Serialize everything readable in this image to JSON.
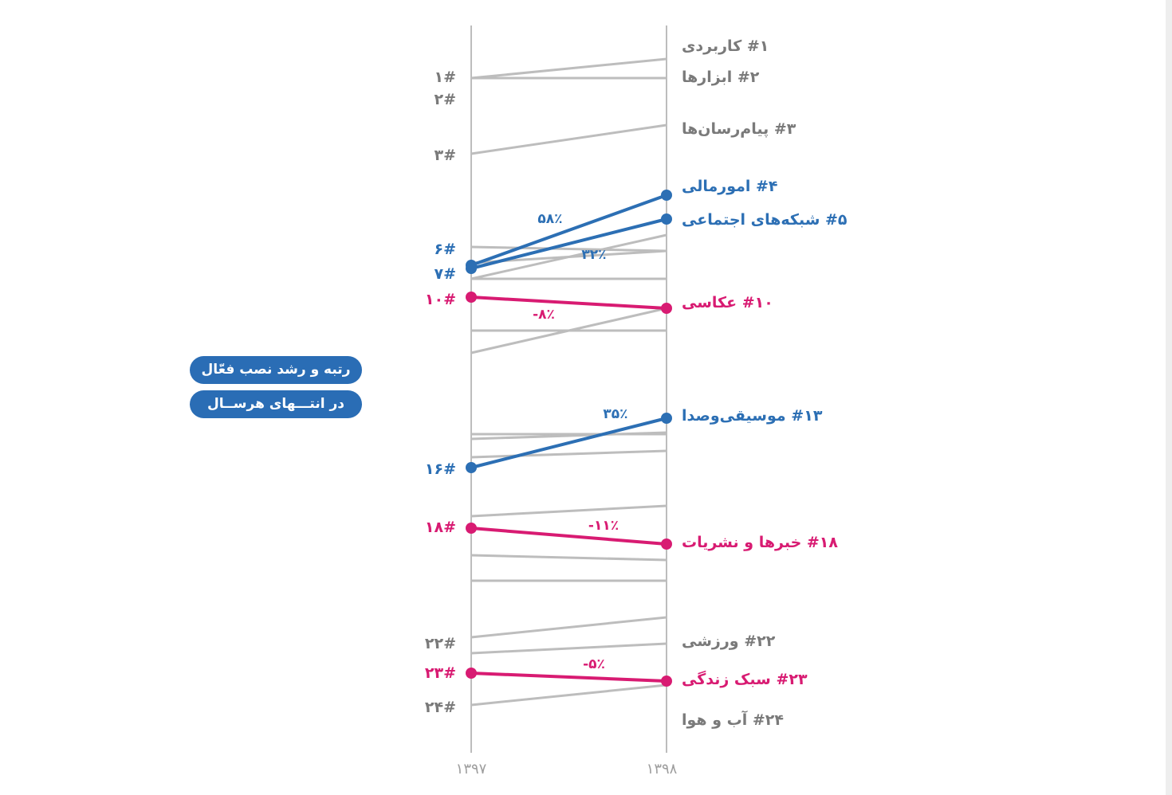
{
  "colors": {
    "gray": "#7a7a7a",
    "blue": "#2c6fb4",
    "pink": "#d81b72",
    "line": "#bdbdbd"
  },
  "years": [
    "۱۳۹۷",
    "۱۳۹۸"
  ],
  "title_lines": [
    "رتبه و رشد نصب فعّال",
    "در انتـــهای هرســال"
  ],
  "left_labels": [
    {
      "text": "۱#",
      "color": "gray"
    },
    {
      "text": "۲#",
      "color": "gray"
    },
    {
      "text": "۳#",
      "color": "gray"
    },
    {
      "text": "۶#",
      "color": "blue"
    },
    {
      "text": "۷#",
      "color": "blue"
    },
    {
      "text": "۱۰#",
      "color": "pink"
    },
    {
      "text": "۱۶#",
      "color": "blue"
    },
    {
      "text": "۱۸#",
      "color": "pink"
    },
    {
      "text": "۲۲#",
      "color": "gray"
    },
    {
      "text": "۲۳#",
      "color": "pink"
    },
    {
      "text": "۲۴#",
      "color": "gray"
    }
  ],
  "right_labels": [
    {
      "text": "#۱ کاربردی",
      "color": "gray"
    },
    {
      "text": "#۲ ابزارها",
      "color": "gray"
    },
    {
      "text": "#۳ پیام‌رسان‌ها",
      "color": "gray"
    },
    {
      "text": "#۴ امورمالی",
      "color": "blue"
    },
    {
      "text": "#۵ شبکه‌های اجتماعی",
      "color": "blue"
    },
    {
      "text": "#۱۰ عکاسی",
      "color": "pink"
    },
    {
      "text": "#۱۳ موسیقی‌وصدا",
      "color": "blue"
    },
    {
      "text": "#۱۸ خبرها و نشریات",
      "color": "pink"
    },
    {
      "text": "#۲۲ ورزشی",
      "color": "gray"
    },
    {
      "text": "#۲۳ سبک زندگی",
      "color": "pink"
    },
    {
      "text": "#۲۴ آب و هوا",
      "color": "gray"
    }
  ],
  "growth_labels": [
    {
      "text": "۵۸٪",
      "color": "blue"
    },
    {
      "text": "۳۲٪",
      "color": "blue"
    },
    {
      "text": "-۸٪",
      "color": "pink"
    },
    {
      "text": "۳۵٪",
      "color": "blue"
    },
    {
      "text": "-۱۱٪",
      "color": "pink"
    },
    {
      "text": "-۵٪",
      "color": "pink"
    }
  ]
}
